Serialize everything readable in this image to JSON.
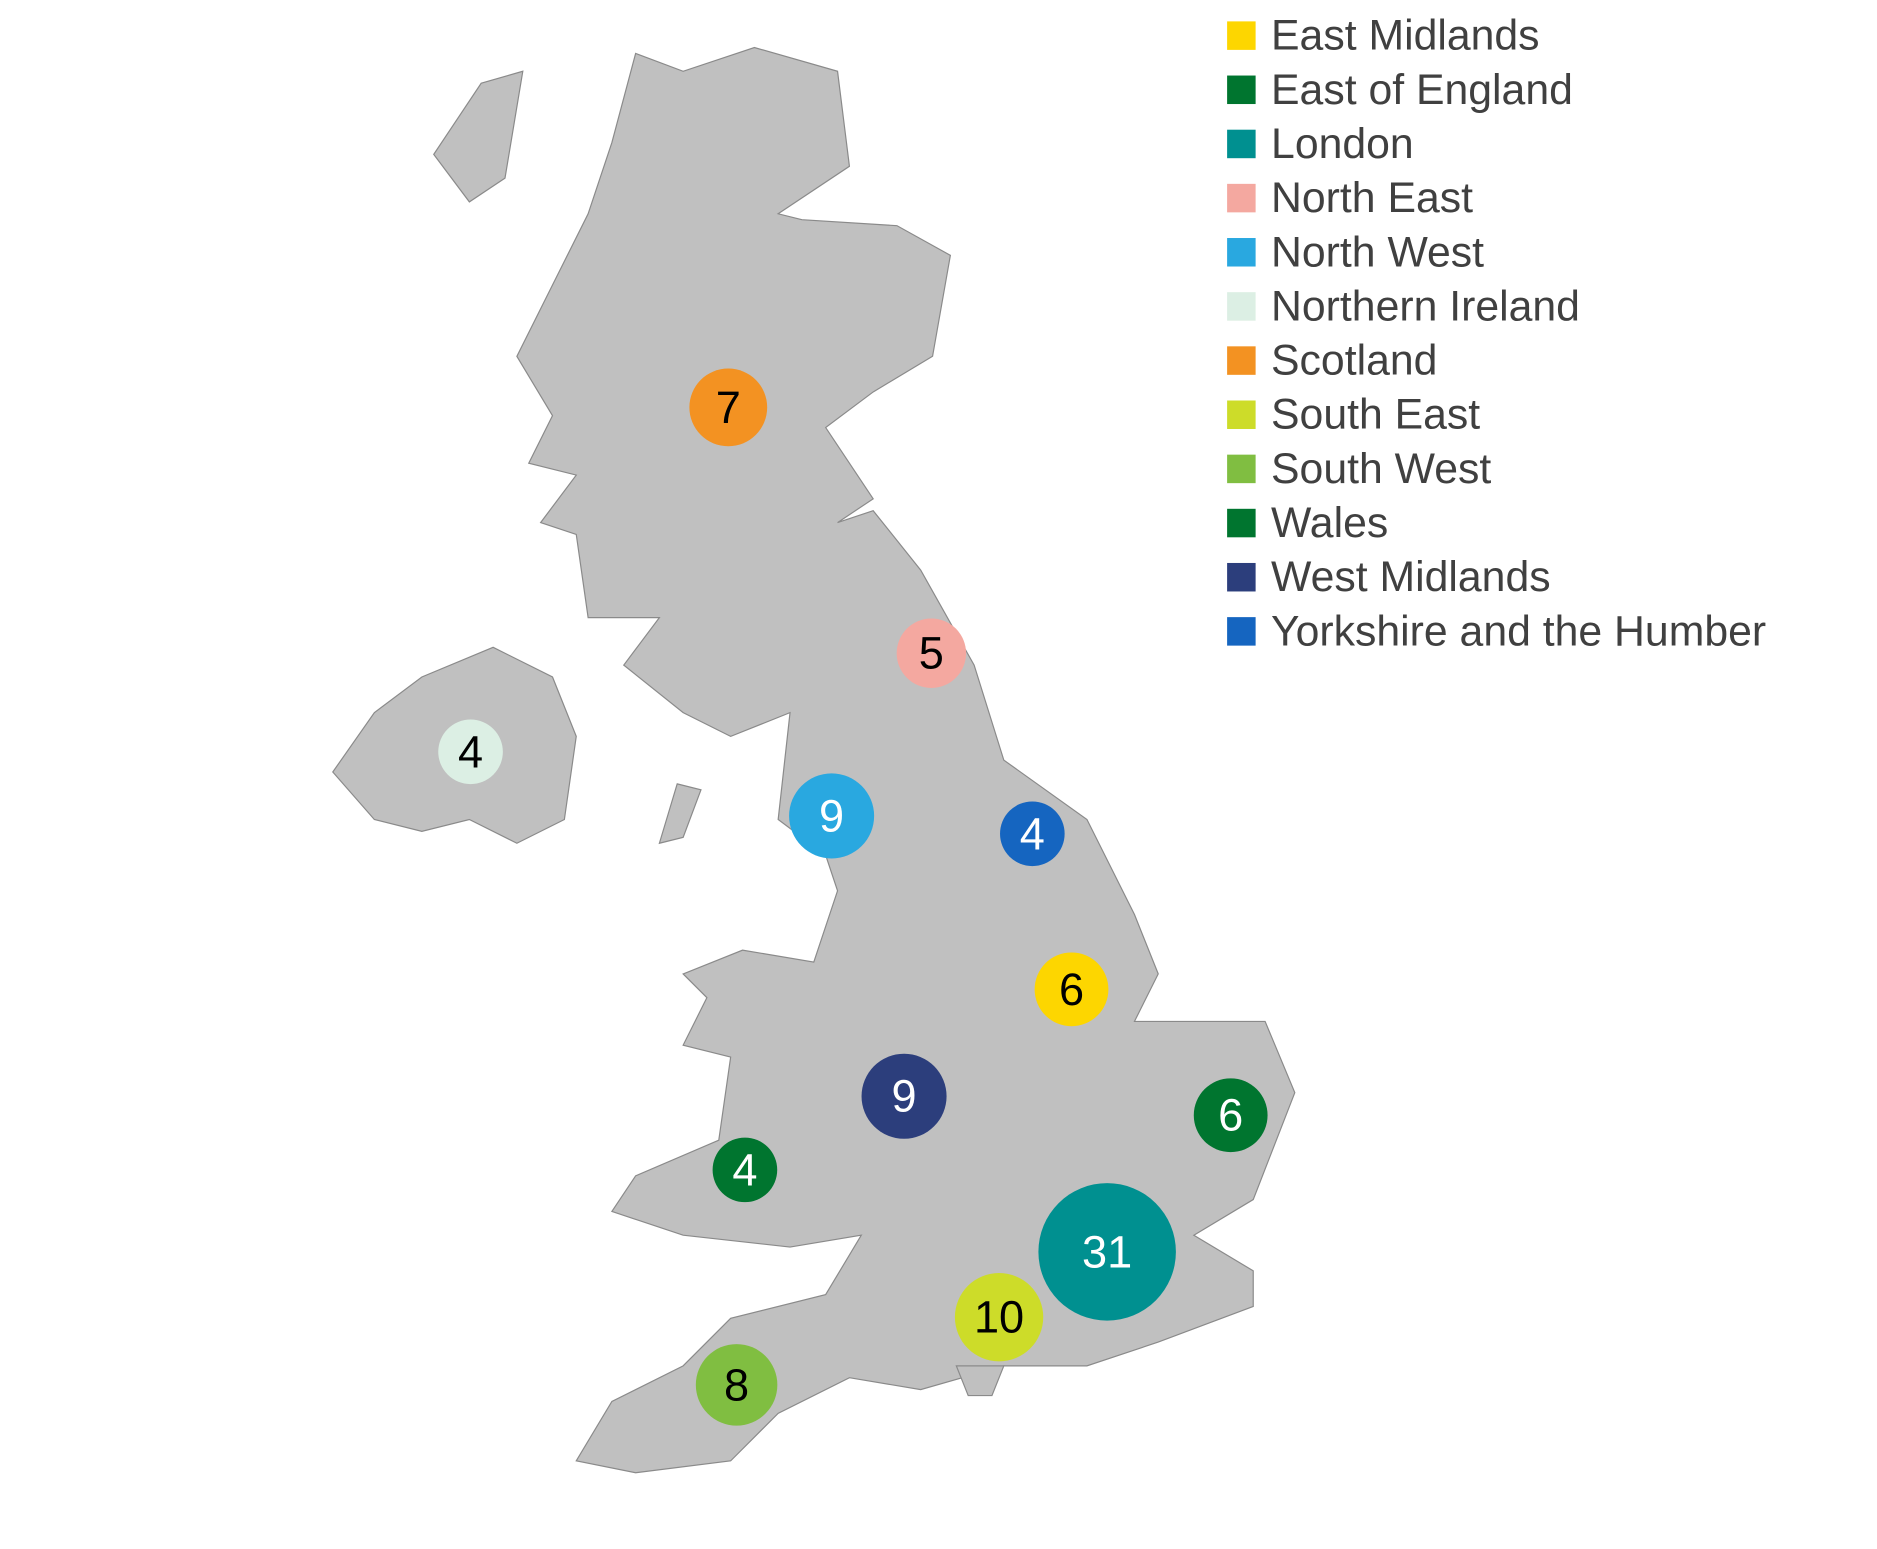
{
  "chart_data": {
    "type": "bubble",
    "regions": [
      {
        "name": "East Midlands",
        "color": "#fdd600",
        "value": 6
      },
      {
        "name": "East of England",
        "color": "#00752f",
        "value": 6
      },
      {
        "name": "London",
        "color": "#009090",
        "value": 31
      },
      {
        "name": "North East",
        "color": "#f4a8a0",
        "value": 5
      },
      {
        "name": "North West",
        "color": "#29a8e0",
        "value": 9
      },
      {
        "name": "Northern Ireland",
        "color": "#dcefe4",
        "value": 4
      },
      {
        "name": "Scotland",
        "color": "#f39222",
        "value": 7
      },
      {
        "name": "South East",
        "color": "#cddc29",
        "value": 10
      },
      {
        "name": "South West",
        "color": "#80be41",
        "value": 8
      },
      {
        "name": "Wales",
        "color": "#00752f",
        "value": 4
      },
      {
        "name": "West Midlands",
        "color": "#2c3e7c",
        "value": 9
      },
      {
        "name": "Yorkshire and the Humber",
        "color": "#1565c0",
        "value": 4
      }
    ]
  }
}
